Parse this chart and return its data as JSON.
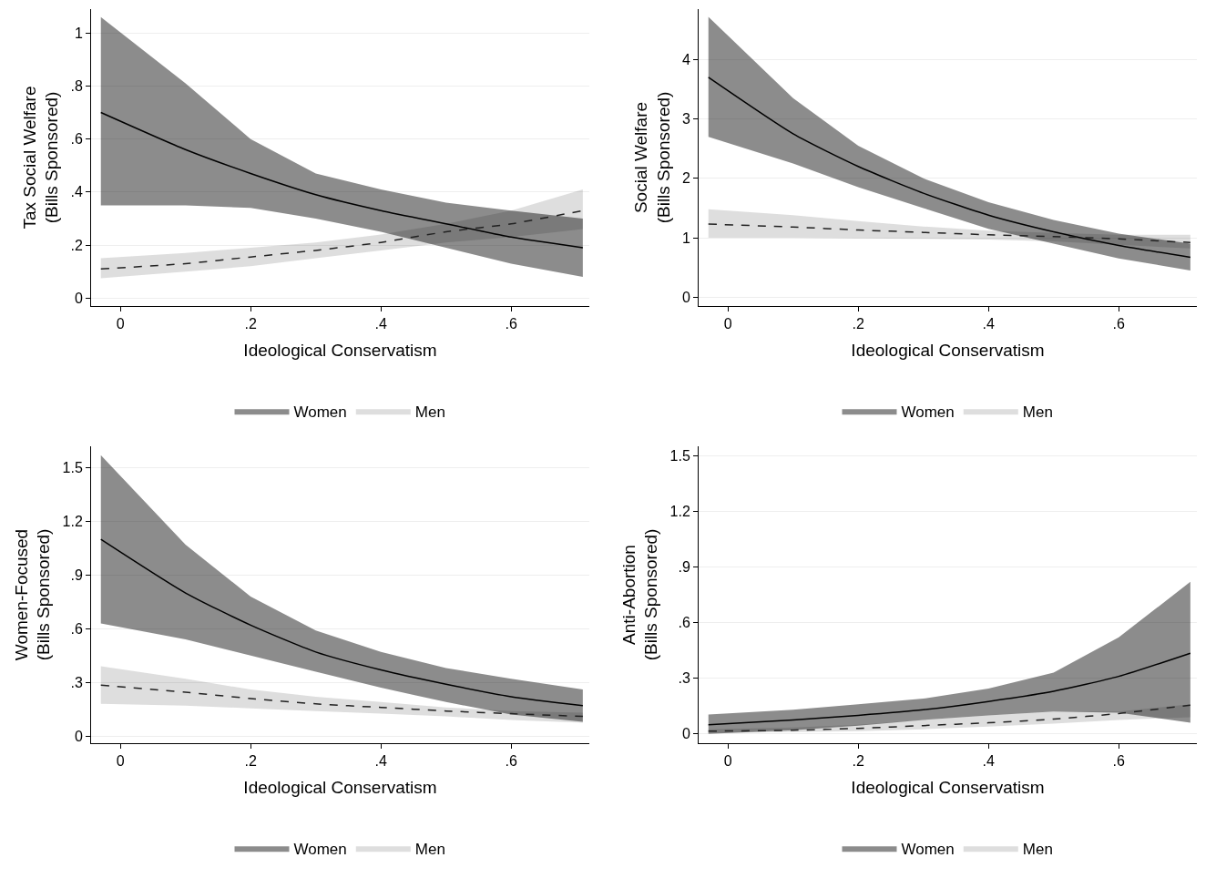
{
  "chart_data": [
    {
      "type": "line",
      "ylabel": "Tax Social Welfare\n(Bills Sponsored)",
      "xlabel": "Ideological Conservatism",
      "x": [
        -0.03,
        0.1,
        0.2,
        0.3,
        0.4,
        0.5,
        0.6,
        0.71
      ],
      "xlim": [
        -0.045,
        0.72
      ],
      "xticks": [
        {
          "value": 0,
          "label": "0"
        },
        {
          "value": 0.2,
          "label": ".2"
        },
        {
          "value": 0.4,
          "label": ".4"
        },
        {
          "value": 0.6,
          "label": ".6"
        }
      ],
      "ylim": [
        -0.03,
        1.09
      ],
      "yticks": [
        0,
        {
          "value": 0.2,
          "label": ".2"
        },
        {
          "value": 0.4,
          "label": ".4"
        },
        {
          "value": 0.6,
          "label": ".6"
        },
        {
          "value": 0.8,
          "label": ".8"
        },
        1
      ],
      "grid": "y",
      "legend": "bottom",
      "marker": "none",
      "series": [
        {
          "name": "Women",
          "color": "#000000",
          "line_style": "solid",
          "values": [
            0.7,
            0.56,
            0.47,
            0.39,
            0.33,
            0.28,
            0.23,
            0.19
          ],
          "upper": [
            1.06,
            0.81,
            0.6,
            0.47,
            0.41,
            0.36,
            0.33,
            0.3
          ],
          "lower": [
            0.35,
            0.35,
            0.34,
            0.3,
            0.25,
            0.19,
            0.13,
            0.08
          ]
        },
        {
          "name": "Men",
          "color": "#222222",
          "line_style": "dashed",
          "values": [
            0.11,
            0.13,
            0.155,
            0.18,
            0.21,
            0.25,
            0.28,
            0.33
          ],
          "upper": [
            0.15,
            0.17,
            0.19,
            0.21,
            0.24,
            0.28,
            0.33,
            0.41
          ],
          "lower": [
            0.075,
            0.1,
            0.12,
            0.15,
            0.18,
            0.21,
            0.23,
            0.26
          ]
        }
      ]
    },
    {
      "type": "line",
      "ylabel": "Social Welfare\n(Bills Sponsored)",
      "xlabel": "Ideological Conservatism",
      "x": [
        -0.03,
        0.1,
        0.2,
        0.3,
        0.4,
        0.5,
        0.6,
        0.71
      ],
      "xlim": [
        -0.045,
        0.72
      ],
      "xticks": [
        {
          "value": 0,
          "label": "0"
        },
        {
          "value": 0.2,
          "label": ".2"
        },
        {
          "value": 0.4,
          "label": ".4"
        },
        {
          "value": 0.6,
          "label": ".6"
        }
      ],
      "ylim": [
        -0.15,
        4.85
      ],
      "yticks": [
        0,
        1,
        2,
        3,
        4
      ],
      "grid": "y",
      "legend": "bottom",
      "marker": "none",
      "series": [
        {
          "name": "Women",
          "color": "#000000",
          "line_style": "solid",
          "values": [
            3.7,
            2.75,
            2.2,
            1.75,
            1.38,
            1.1,
            0.87,
            0.67
          ],
          "upper": [
            4.72,
            3.35,
            2.55,
            2.0,
            1.6,
            1.3,
            1.07,
            0.9
          ],
          "lower": [
            2.7,
            2.25,
            1.85,
            1.5,
            1.15,
            0.9,
            0.65,
            0.45
          ]
        },
        {
          "name": "Men",
          "color": "#222222",
          "line_style": "dashed",
          "values": [
            1.23,
            1.18,
            1.13,
            1.09,
            1.05,
            1.02,
            0.98,
            0.92
          ],
          "upper": [
            1.48,
            1.38,
            1.28,
            1.19,
            1.12,
            1.08,
            1.05,
            1.05
          ],
          "lower": [
            1.0,
            1.0,
            0.99,
            0.98,
            0.97,
            0.94,
            0.88,
            0.82
          ]
        }
      ]
    },
    {
      "type": "line",
      "ylabel": "Women-Focused\n(Bills Sponsored)",
      "xlabel": "Ideological Conservatism",
      "x": [
        -0.03,
        0.1,
        0.2,
        0.3,
        0.4,
        0.5,
        0.6,
        0.71
      ],
      "xlim": [
        -0.045,
        0.72
      ],
      "xticks": [
        {
          "value": 0,
          "label": "0"
        },
        {
          "value": 0.2,
          "label": ".2"
        },
        {
          "value": 0.4,
          "label": ".4"
        },
        {
          "value": 0.6,
          "label": ".6"
        }
      ],
      "ylim": [
        -0.04,
        1.62
      ],
      "yticks": [
        0,
        {
          "value": 0.3,
          "label": ".3"
        },
        {
          "value": 0.6,
          "label": ".6"
        },
        {
          "value": 0.9,
          "label": ".9"
        },
        1.2,
        1.5
      ],
      "grid": "y",
      "legend": "bottom",
      "marker": "none",
      "series": [
        {
          "name": "Women",
          "color": "#000000",
          "line_style": "solid",
          "values": [
            1.1,
            0.8,
            0.62,
            0.47,
            0.37,
            0.29,
            0.22,
            0.17
          ],
          "upper": [
            1.57,
            1.07,
            0.78,
            0.59,
            0.47,
            0.38,
            0.32,
            0.26
          ],
          "lower": [
            0.63,
            0.54,
            0.45,
            0.36,
            0.27,
            0.19,
            0.12,
            0.08
          ]
        },
        {
          "name": "Men",
          "color": "#222222",
          "line_style": "dashed",
          "values": [
            0.285,
            0.245,
            0.21,
            0.18,
            0.16,
            0.14,
            0.125,
            0.11
          ],
          "upper": [
            0.39,
            0.32,
            0.26,
            0.22,
            0.19,
            0.16,
            0.14,
            0.13
          ],
          "lower": [
            0.18,
            0.17,
            0.155,
            0.14,
            0.125,
            0.11,
            0.09,
            0.075
          ]
        }
      ]
    },
    {
      "type": "line",
      "ylabel": "Anti-Abortion\n(Bills Sponsored)",
      "xlabel": "Ideological Conservatism",
      "x": [
        -0.03,
        0.1,
        0.2,
        0.3,
        0.4,
        0.5,
        0.6,
        0.71
      ],
      "xlim": [
        -0.045,
        0.72
      ],
      "xticks": [
        {
          "value": 0,
          "label": "0"
        },
        {
          "value": 0.2,
          "label": ".2"
        },
        {
          "value": 0.4,
          "label": ".4"
        },
        {
          "value": 0.6,
          "label": ".6"
        }
      ],
      "ylim": [
        -0.05,
        1.55
      ],
      "yticks": [
        0,
        {
          "value": 0.3,
          "label": ".3"
        },
        {
          "value": 0.6,
          "label": ".6"
        },
        {
          "value": 0.9,
          "label": ".9"
        },
        1.2,
        1.5
      ],
      "grid": "y",
      "legend": "bottom",
      "marker": "none",
      "series": [
        {
          "name": "Women",
          "color": "#000000",
          "line_style": "solid",
          "values": [
            0.05,
            0.075,
            0.1,
            0.13,
            0.175,
            0.23,
            0.31,
            0.435
          ],
          "upper": [
            0.105,
            0.13,
            0.16,
            0.19,
            0.245,
            0.33,
            0.52,
            0.82
          ],
          "lower": [
            0.0,
            0.02,
            0.045,
            0.075,
            0.1,
            0.12,
            0.115,
            0.06
          ]
        },
        {
          "name": "Men",
          "color": "#222222",
          "line_style": "dashed",
          "values": [
            0.015,
            0.02,
            0.03,
            0.045,
            0.06,
            0.08,
            0.11,
            0.155
          ],
          "upper": [
            0.025,
            0.035,
            0.05,
            0.075,
            0.1,
            0.12,
            0.12,
            0.16
          ],
          "lower": [
            0.005,
            0.01,
            0.015,
            0.025,
            0.04,
            0.055,
            0.075,
            0.09
          ]
        }
      ]
    }
  ]
}
